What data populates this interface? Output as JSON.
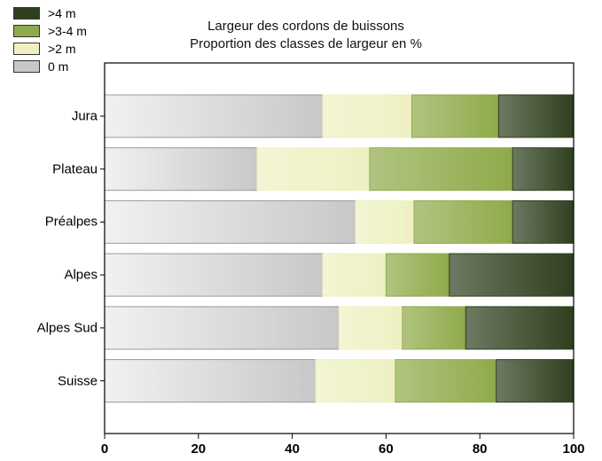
{
  "chart_data": {
    "type": "bar",
    "orientation": "horizontal",
    "stacked": true,
    "title": "Largeur des cordons de buissons",
    "subtitle": "Proportion des classes de largeur en %",
    "categories": [
      "Jura",
      "Plateau",
      "Préalpes",
      "Alpes",
      "Alpes Sud",
      "Suisse"
    ],
    "series": [
      {
        "name": "0 m",
        "color": "#c8c8c8",
        "values": [
          46.5,
          32.5,
          53.5,
          46.5,
          50.0,
          45.0
        ]
      },
      {
        "name": ">2 m",
        "color": "#eef0c2",
        "values": [
          19.0,
          24.0,
          12.5,
          13.5,
          13.5,
          17.0
        ]
      },
      {
        "name": ">3-4 m",
        "color": "#8faa4a",
        "values": [
          18.5,
          30.5,
          21.0,
          13.5,
          13.5,
          21.5
        ]
      },
      {
        "name": ">4 m",
        "color": "#2f3f1e",
        "values": [
          16.0,
          13.0,
          13.0,
          26.5,
          23.0,
          16.5
        ]
      }
    ],
    "legend_order": [
      ">4 m",
      ">3-4 m",
      ">2 m",
      "0 m"
    ],
    "xlim": [
      0,
      100
    ],
    "xticks": [
      "0",
      "20",
      "40",
      "60",
      "80",
      "100"
    ],
    "legend_position": "top-left",
    "grid": false
  }
}
